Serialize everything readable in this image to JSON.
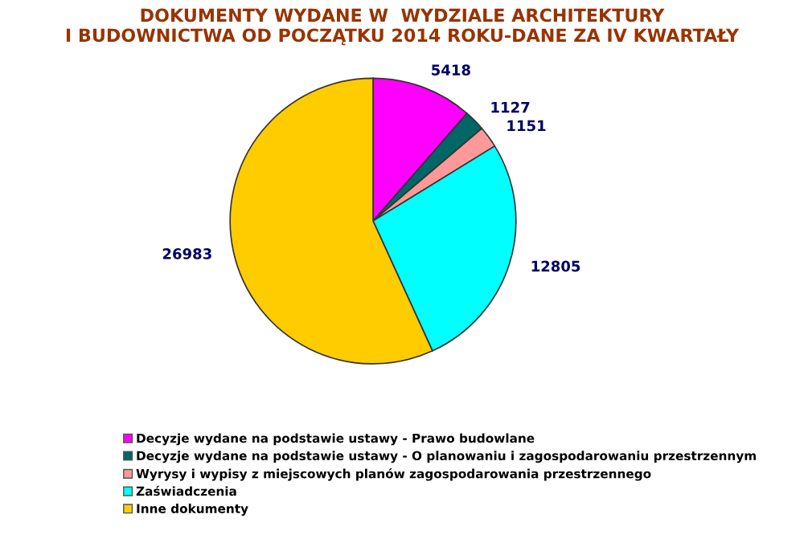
{
  "chart_data": {
    "type": "pie",
    "title": "DOKUMENTY WYDANE W  WYDZIALE ARCHITEKTURY\nI BUDOWNICTWA OD POCZĄTKU 2014 ROKU-DANE ZA IV KWARTAŁY",
    "categories": [
      "Decyzje wydane na podstawie ustawy - Prawo budowlane",
      "Decyzje wydane na podstawie ustawy - O planowaniu i zagospodarowaniu przestrzennym",
      "Wyrysy i wypisy z miejscowych planów zagospodarowania przestrzennego",
      "Zaświadczenia",
      "Inne dokumenty"
    ],
    "values": [
      5418,
      1127,
      1151,
      12805,
      26983
    ],
    "colors": [
      "#ff00ff",
      "#006666",
      "#ff9999",
      "#00ffff",
      "#ffcc00"
    ],
    "data_labels": true,
    "legend": "bottom"
  }
}
